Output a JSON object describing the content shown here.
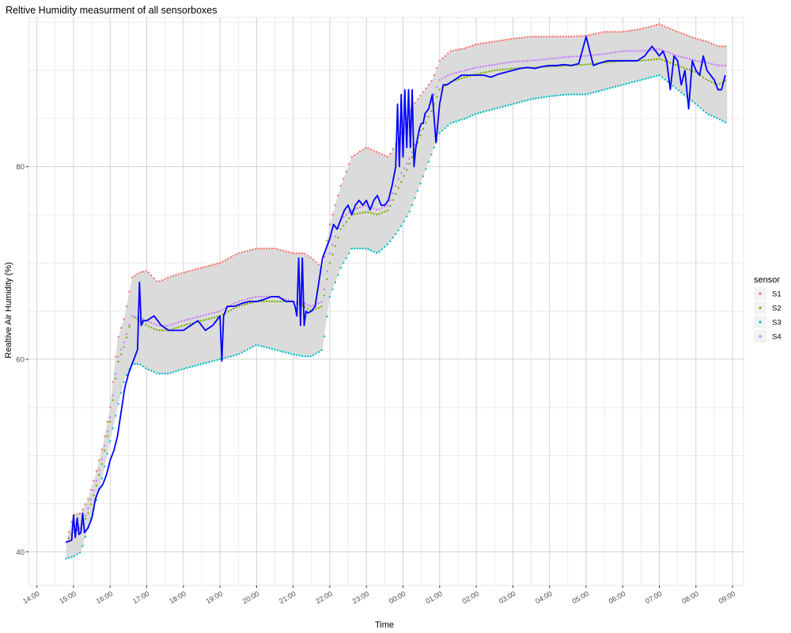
{
  "chart_data": {
    "type": "line",
    "title": "Reltive Humidity measurment of all sensorboxes",
    "xlabel": "Time",
    "ylabel": "Realtive Air Humidity (%)",
    "x_ticks": [
      "14:00",
      "15:00",
      "16:00",
      "17:00",
      "18:00",
      "19:00",
      "20:00",
      "21:00",
      "22:00",
      "23:00",
      "00:00",
      "01:00",
      "02:00",
      "03:00",
      "04:00",
      "05:00",
      "06:00",
      "07:00",
      "08:00",
      "09:00"
    ],
    "y_ticks": [
      40,
      60,
      80
    ],
    "ylim": [
      36.5,
      95.5
    ],
    "xlim_hours": [
      13.77,
      33.3
    ],
    "grid": true,
    "legend": {
      "title": "sensor",
      "position": "right",
      "entries": [
        {
          "name": "S1",
          "color": "#F8766D"
        },
        {
          "name": "S2",
          "color": "#7CAE00"
        },
        {
          "name": "S3",
          "color": "#00BFC4"
        },
        {
          "name": "S4",
          "color": "#C77CFF"
        }
      ]
    },
    "mean_line_color": "#0000FF",
    "ribbon_color": "#D9D9D9",
    "points_hours": [
      14.8,
      15.0,
      15.2,
      15.4,
      15.6,
      15.8,
      16.0,
      16.2,
      16.4,
      16.6,
      16.8,
      17.0,
      17.3,
      17.6,
      18.0,
      18.5,
      19.0,
      19.5,
      20.0,
      20.5,
      21.0,
      21.3,
      21.5,
      21.8,
      22.0,
      22.3,
      22.6,
      23.0,
      23.3,
      23.6,
      23.9,
      24.2,
      24.5,
      24.8,
      25.0,
      25.3,
      25.7,
      26.0,
      26.5,
      27.0,
      27.5,
      28.0,
      28.5,
      29.0,
      29.5,
      30.0,
      30.5,
      31.0,
      31.5,
      32.0,
      32.3,
      32.6,
      32.85
    ],
    "series": [
      {
        "name": "S1",
        "values": [
          41.0,
          43.8,
          44.0,
          45.5,
          48.0,
          51.0,
          55.0,
          62.0,
          64.5,
          68.5,
          69.0,
          69.2,
          68.0,
          68.5,
          69.0,
          69.5,
          70.0,
          71.0,
          71.5,
          71.5,
          71.0,
          71.0,
          70.5,
          69.5,
          74.0,
          78.0,
          81.0,
          82.0,
          81.5,
          81.0,
          83.0,
          86.0,
          87.5,
          89.0,
          91.0,
          92.0,
          92.3,
          92.7,
          93.0,
          93.3,
          93.5,
          93.5,
          93.5,
          93.6,
          94.0,
          94.0,
          94.3,
          94.8,
          94.0,
          93.3,
          93.0,
          92.5,
          92.5
        ]
      },
      {
        "name": "S2",
        "values": [
          41.0,
          42.0,
          42.5,
          44.0,
          46.5,
          49.5,
          53.5,
          59.5,
          61.5,
          64.5,
          64.0,
          63.5,
          63.0,
          63.0,
          63.5,
          64.0,
          64.5,
          65.5,
          66.0,
          66.0,
          66.0,
          65.5,
          65.0,
          65.5,
          70.0,
          73.5,
          75.0,
          75.3,
          75.0,
          75.5,
          78.0,
          80.5,
          83.5,
          86.0,
          88.0,
          88.8,
          89.3,
          89.6,
          90.0,
          90.2,
          90.3,
          90.4,
          90.5,
          90.6,
          90.8,
          91.0,
          91.0,
          91.2,
          90.5,
          89.8,
          89.0,
          88.5,
          89.0
        ]
      },
      {
        "name": "S3",
        "values": [
          39.3,
          39.5,
          40.0,
          42.5,
          45.0,
          48.0,
          51.5,
          55.0,
          58.0,
          59.5,
          59.5,
          59.0,
          58.5,
          58.5,
          59.0,
          59.5,
          60.0,
          60.5,
          61.5,
          61.0,
          60.5,
          60.3,
          60.3,
          61.0,
          66.5,
          69.5,
          71.5,
          71.5,
          71.0,
          72.0,
          73.5,
          75.5,
          78.5,
          81.5,
          83.5,
          84.5,
          85.0,
          85.5,
          86.0,
          86.5,
          87.0,
          87.3,
          87.5,
          87.5,
          88.0,
          88.5,
          89.0,
          89.5,
          88.0,
          86.5,
          85.5,
          85.0,
          84.5
        ]
      },
      {
        "name": "S4",
        "values": [
          41.0,
          42.3,
          42.5,
          44.5,
          47.0,
          50.0,
          54.0,
          60.0,
          62.0,
          64.5,
          64.3,
          64.0,
          63.5,
          63.5,
          64.0,
          64.5,
          65.0,
          66.0,
          66.5,
          66.5,
          66.0,
          65.8,
          65.5,
          66.0,
          71.0,
          74.5,
          75.5,
          76.0,
          75.5,
          76.0,
          79.0,
          81.0,
          84.0,
          87.0,
          89.0,
          89.6,
          90.0,
          90.3,
          90.6,
          90.9,
          91.0,
          91.2,
          91.4,
          91.5,
          91.7,
          92.0,
          92.0,
          92.2,
          91.5,
          91.0,
          90.8,
          90.5,
          90.5
        ]
      }
    ],
    "mean_hours": [
      14.8,
      14.95,
      15.0,
      15.05,
      15.1,
      15.15,
      15.2,
      15.25,
      15.3,
      15.4,
      15.5,
      15.6,
      15.7,
      15.8,
      15.9,
      16.0,
      16.1,
      16.2,
      16.3,
      16.4,
      16.5,
      16.6,
      16.7,
      16.75,
      16.8,
      16.85,
      16.9,
      17.0,
      17.2,
      17.4,
      17.6,
      17.8,
      18.0,
      18.2,
      18.4,
      18.6,
      18.8,
      19.0,
      19.05,
      19.1,
      19.2,
      19.4,
      19.6,
      19.8,
      20.0,
      20.2,
      20.4,
      20.6,
      20.8,
      21.0,
      21.05,
      21.1,
      21.15,
      21.2,
      21.25,
      21.3,
      21.35,
      21.4,
      21.5,
      21.6,
      21.7,
      21.8,
      21.9,
      22.0,
      22.1,
      22.2,
      22.3,
      22.4,
      22.5,
      22.6,
      22.7,
      22.8,
      22.9,
      23.0,
      23.1,
      23.2,
      23.3,
      23.4,
      23.5,
      23.6,
      23.7,
      23.8,
      23.85,
      23.9,
      23.95,
      24.0,
      24.05,
      24.1,
      24.15,
      24.2,
      24.25,
      24.3,
      24.35,
      24.4,
      24.45,
      24.5,
      24.55,
      24.6,
      24.7,
      24.8,
      24.9,
      25.0,
      25.05,
      25.1,
      25.2,
      25.4,
      25.6,
      25.8,
      26.0,
      26.2,
      26.4,
      26.6,
      26.8,
      27.0,
      27.2,
      27.4,
      27.6,
      27.8,
      28.0,
      28.2,
      28.4,
      28.6,
      28.8,
      29.0,
      29.2,
      29.4,
      29.6,
      29.8,
      30.0,
      30.2,
      30.4,
      30.6,
      30.8,
      31.0,
      31.1,
      31.2,
      31.3,
      31.4,
      31.5,
      31.6,
      31.7,
      31.8,
      31.9,
      32.0,
      32.1,
      32.2,
      32.3,
      32.4,
      32.5,
      32.6,
      32.7,
      32.8,
      32.85
    ],
    "mean_values": [
      41.0,
      41.2,
      43.8,
      41.5,
      43.5,
      41.8,
      42.0,
      44.0,
      42.0,
      42.5,
      43.5,
      45.5,
      46.5,
      47.0,
      48.0,
      49.5,
      50.5,
      52.0,
      54.5,
      57.0,
      58.5,
      59.5,
      60.5,
      61.0,
      68.0,
      63.5,
      64.0,
      64.0,
      64.5,
      63.5,
      63.0,
      63.0,
      63.0,
      63.5,
      64.0,
      63.0,
      63.5,
      64.5,
      59.8,
      64.5,
      65.5,
      65.5,
      65.8,
      66.0,
      66.0,
      66.2,
      66.5,
      66.5,
      66.0,
      66.0,
      65.5,
      64.5,
      70.5,
      63.5,
      70.5,
      63.5,
      65.0,
      64.8,
      65.0,
      65.5,
      68.0,
      70.5,
      71.5,
      72.5,
      74.0,
      73.5,
      74.5,
      75.5,
      76.0,
      75.0,
      76.0,
      76.5,
      76.0,
      76.5,
      75.5,
      76.5,
      77.0,
      76.0,
      76.0,
      76.5,
      78.0,
      80.0,
      86.5,
      80.0,
      87.5,
      81.0,
      88.0,
      82.0,
      88.0,
      82.0,
      88.0,
      80.0,
      82.0,
      83.0,
      84.0,
      84.5,
      84.5,
      85.5,
      86.0,
      87.5,
      82.5,
      86.5,
      87.5,
      88.5,
      88.5,
      89.0,
      89.5,
      89.5,
      89.5,
      89.5,
      89.3,
      89.6,
      89.8,
      90.0,
      90.2,
      90.3,
      90.2,
      90.4,
      90.5,
      90.5,
      90.6,
      90.5,
      90.7,
      93.5,
      90.5,
      90.8,
      91.0,
      91.0,
      91.0,
      91.0,
      91.0,
      91.5,
      92.5,
      91.5,
      92.0,
      91.0,
      88.0,
      91.5,
      91.0,
      88.5,
      90.0,
      86.0,
      91.0,
      90.0,
      89.5,
      91.5,
      90.0,
      89.5,
      89.0,
      88.0,
      88.0,
      89.5
    ]
  }
}
